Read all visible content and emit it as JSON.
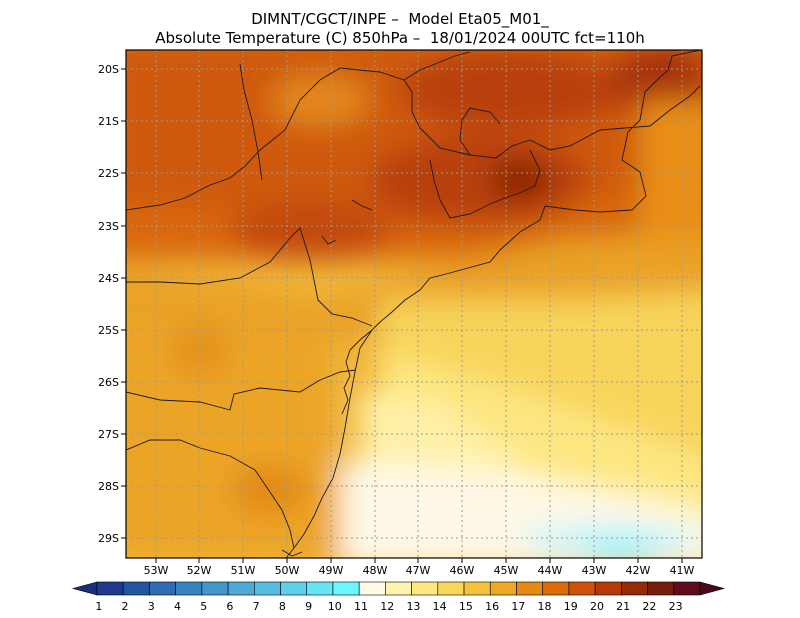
{
  "title": {
    "line1": "DIMNT/CGCT/INPE –  Model Eta05_M01_",
    "line2": "Absolute Temperature (C) 850hPa –  18/01/2024 00UTC fct=110h"
  },
  "axes": {
    "lat_labels": [
      "20S",
      "21S",
      "22S",
      "23S",
      "24S",
      "25S",
      "26S",
      "27S",
      "28S",
      "29S"
    ],
    "lon_labels": [
      "53W",
      "52W",
      "51W",
      "50W",
      "49W",
      "48W",
      "47W",
      "46W",
      "45W",
      "44W",
      "43W",
      "42W",
      "41W"
    ]
  },
  "colorbar": {
    "labels": [
      "1",
      "2",
      "3",
      "4",
      "5",
      "6",
      "7",
      "8",
      "9",
      "10",
      "11",
      "12",
      "13",
      "14",
      "15",
      "16",
      "17",
      "18",
      "19",
      "20",
      "21",
      "22",
      "23"
    ],
    "colors": [
      "#1f3a8a",
      "#2456a0",
      "#2f6cb0",
      "#3a82c0",
      "#4596cb",
      "#4fa9d6",
      "#57bde0",
      "#5fd0ea",
      "#66e4f4",
      "#6cf7fd",
      "#fffbe8",
      "#fff3b0",
      "#fde680",
      "#f9d65c",
      "#f4c23c",
      "#eea924",
      "#e58a14",
      "#dc6c0c",
      "#cf520a",
      "#b53a08",
      "#942a06",
      "#761d0e",
      "#5e0c1c"
    ],
    "low_end_color": "#1a2f78",
    "high_end_color": "#4a0818"
  }
}
